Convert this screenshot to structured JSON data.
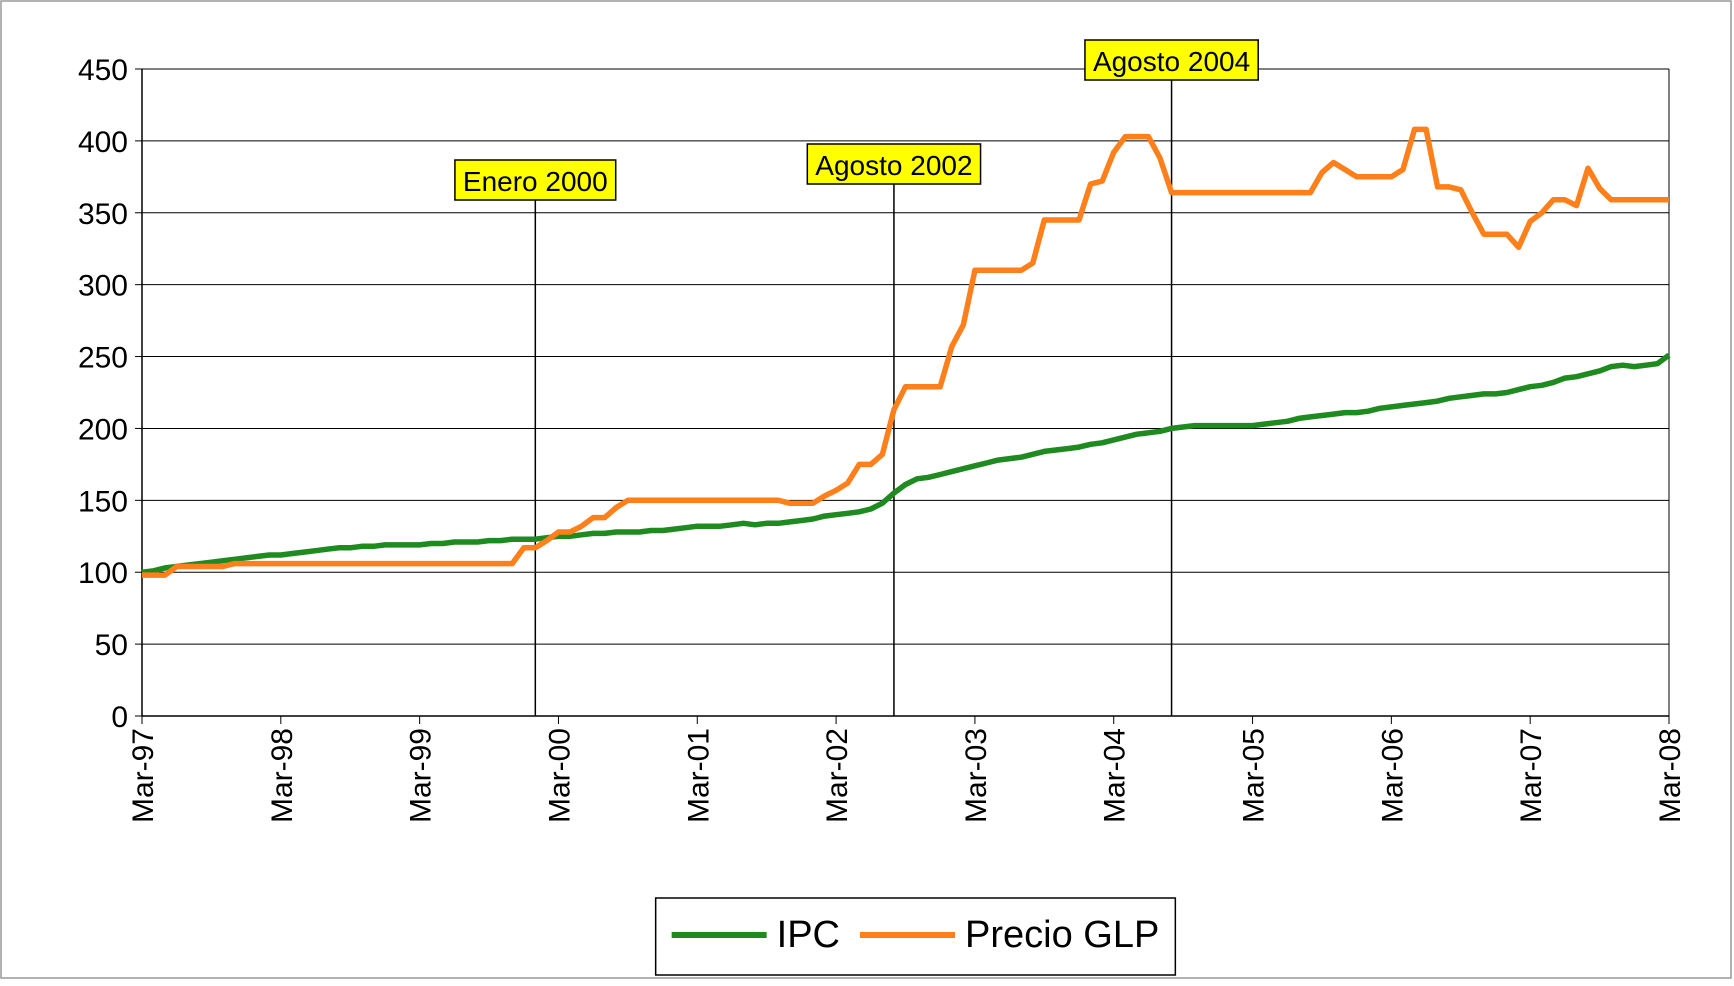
{
  "chart_data": {
    "type": "line",
    "categories": [
      "Mar-97",
      null,
      null,
      null,
      null,
      null,
      null,
      null,
      null,
      null,
      null,
      null,
      "Mar-98",
      null,
      null,
      null,
      null,
      null,
      null,
      null,
      null,
      null,
      null,
      null,
      "Mar-99",
      null,
      null,
      null,
      null,
      null,
      null,
      null,
      null,
      null,
      null,
      null,
      "Mar-00",
      null,
      null,
      null,
      null,
      null,
      null,
      null,
      null,
      null,
      null,
      null,
      "Mar-01",
      null,
      null,
      null,
      null,
      null,
      null,
      null,
      null,
      null,
      null,
      null,
      "Mar-02",
      null,
      null,
      null,
      null,
      null,
      null,
      null,
      null,
      null,
      null,
      null,
      "Mar-03",
      null,
      null,
      null,
      null,
      null,
      null,
      null,
      null,
      null,
      null,
      null,
      "Mar-04",
      null,
      null,
      null,
      null,
      null,
      null,
      null,
      null,
      null,
      null,
      null,
      "Mar-05",
      null,
      null,
      null,
      null,
      null,
      null,
      null,
      null,
      null,
      null,
      null,
      "Mar-06",
      null,
      null,
      null,
      null,
      null,
      null,
      null,
      null,
      null,
      null,
      null,
      "Mar-07",
      null,
      null,
      null,
      null,
      null,
      null,
      null,
      null,
      null,
      null,
      null,
      "Mar-08"
    ],
    "series": [
      {
        "name": "IPC",
        "color": "#1f8a1f",
        "values": [
          100,
          101,
          103,
          104,
          105,
          106,
          107,
          108,
          109,
          110,
          111,
          112,
          112,
          113,
          114,
          115,
          116,
          117,
          117,
          118,
          118,
          119,
          119,
          119,
          119,
          120,
          120,
          121,
          121,
          121,
          122,
          122,
          123,
          123,
          123,
          124,
          125,
          125,
          126,
          127,
          127,
          128,
          128,
          128,
          129,
          129,
          130,
          131,
          132,
          132,
          132,
          133,
          134,
          133,
          134,
          134,
          135,
          136,
          137,
          139,
          140,
          141,
          142,
          144,
          148,
          155,
          161,
          165,
          166,
          168,
          170,
          172,
          174,
          176,
          178,
          179,
          180,
          182,
          184,
          185,
          186,
          187,
          189,
          190,
          192,
          194,
          196,
          197,
          198,
          200,
          201,
          202,
          202,
          202,
          202,
          202,
          202,
          203,
          204,
          205,
          207,
          208,
          209,
          210,
          211,
          211,
          212,
          214,
          215,
          216,
          217,
          218,
          219,
          221,
          222,
          223,
          224,
          224,
          225,
          227,
          229,
          230,
          232,
          235,
          236,
          238,
          240,
          243,
          244,
          243,
          244,
          245,
          251
        ]
      },
      {
        "name": "Precio GLP",
        "color": "#ff7f1a",
        "values": [
          98,
          98,
          98,
          104,
          104,
          104,
          104,
          104,
          106,
          106,
          106,
          106,
          106,
          106,
          106,
          106,
          106,
          106,
          106,
          106,
          106,
          106,
          106,
          106,
          106,
          106,
          106,
          106,
          106,
          106,
          106,
          106,
          106,
          117,
          117,
          122,
          128,
          128,
          132,
          138,
          138,
          145,
          150,
          150,
          150,
          150,
          150,
          150,
          150,
          150,
          150,
          150,
          150,
          150,
          150,
          150,
          148,
          148,
          148,
          153,
          157,
          162,
          175,
          175,
          182,
          213,
          229,
          229,
          229,
          229,
          257,
          272,
          310,
          310,
          310,
          310,
          310,
          315,
          345,
          345,
          345,
          345,
          370,
          372,
          392,
          403,
          403,
          403,
          388,
          364,
          364,
          364,
          364,
          364,
          364,
          364,
          364,
          364,
          364,
          364,
          364,
          364,
          378,
          385,
          380,
          375,
          375,
          375,
          375,
          380,
          408,
          408,
          368,
          368,
          366,
          350,
          335,
          335,
          335,
          326,
          344,
          350,
          359,
          359,
          355,
          381,
          367,
          359,
          359,
          359,
          359,
          359,
          359
        ]
      }
    ],
    "annotations": [
      {
        "text": "Enero 2000",
        "x": 34
      },
      {
        "text": "Agosto 2002",
        "x": 65
      },
      {
        "text": "Agosto 2004",
        "x": 89
      }
    ],
    "ylim": [
      0,
      450
    ],
    "yticks": [
      0,
      50,
      100,
      150,
      200,
      250,
      300,
      350,
      400,
      450
    ],
    "grid": true,
    "legend": "bottom"
  }
}
